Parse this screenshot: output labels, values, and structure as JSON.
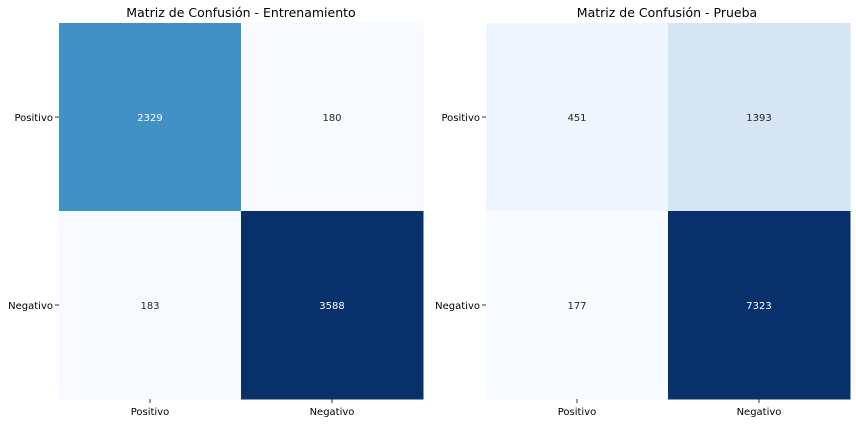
{
  "chart_data": [
    {
      "type": "heatmap",
      "title": "Matriz de Confusión - Entrenamiento",
      "xlabel": "",
      "ylabel": "",
      "x_categories": [
        "Positivo",
        "Negativo"
      ],
      "y_categories": [
        "Positivo",
        "Negativo"
      ],
      "values": [
        [
          2329,
          180
        ],
        [
          183,
          3588
        ]
      ],
      "colormap": "Blues",
      "grid": false,
      "colorbar": false
    },
    {
      "type": "heatmap",
      "title": "Matriz de Confusión - Prueba",
      "xlabel": "",
      "ylabel": "",
      "x_categories": [
        "Positivo",
        "Negativo"
      ],
      "y_categories": [
        "Positivo",
        "Negativo"
      ],
      "values": [
        [
          451,
          1393
        ],
        [
          177,
          7323
        ]
      ],
      "colormap": "Blues",
      "grid": false,
      "colorbar": false
    }
  ],
  "colors": {
    "blues_low": "#f7fbff",
    "blues_high": "#08306b",
    "text_dark": "#262626",
    "text_light": "#ffffff"
  }
}
